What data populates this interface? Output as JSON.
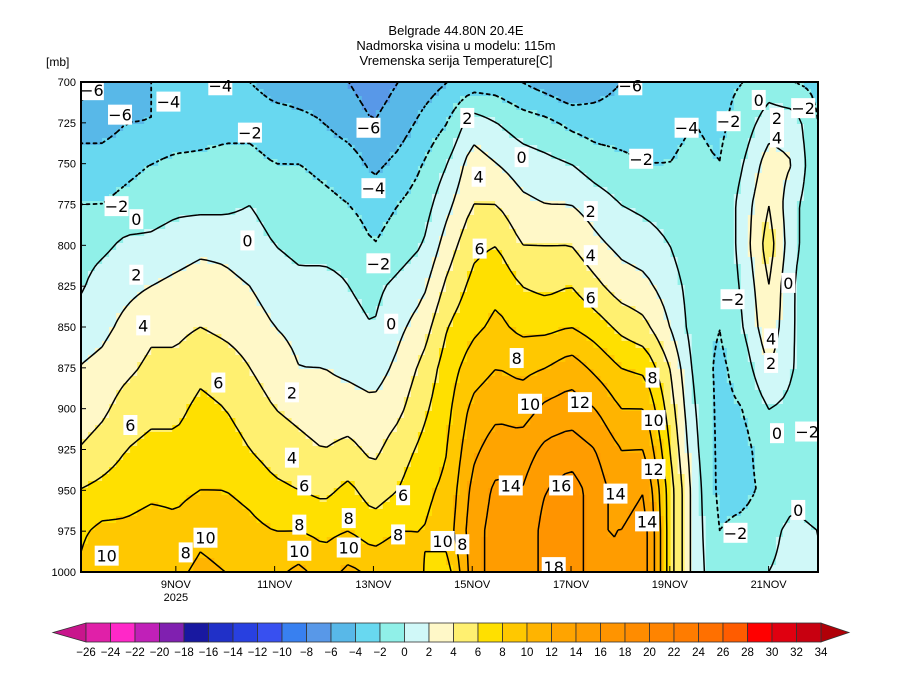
{
  "chart_data": {
    "type": "heatmap",
    "subtype": "filled-contour time-pressure cross-section",
    "title": [
      "Belgrade  44.80N 20.4E",
      "Nadmorska visina u modelu: 115m",
      "Vremenska serija Temperature[C]"
    ],
    "ylabel": "[mb]",
    "xlabel": "",
    "xlim": [
      7.08,
      22.0
    ],
    "ylim": [
      700,
      1000
    ],
    "y_ticks": [
      {
        "value": 700,
        "label": "700"
      },
      {
        "value": 725,
        "label": "725"
      },
      {
        "value": 750,
        "label": "750"
      },
      {
        "value": 775,
        "label": "775"
      },
      {
        "value": 800,
        "label": "800"
      },
      {
        "value": 825,
        "label": "825"
      },
      {
        "value": 850,
        "label": "850"
      },
      {
        "value": 875,
        "label": "875"
      },
      {
        "value": 900,
        "label": "900"
      },
      {
        "value": 925,
        "label": "925"
      },
      {
        "value": 950,
        "label": "950"
      },
      {
        "value": 975,
        "label": "975"
      },
      {
        "value": 1000,
        "label": "1000"
      }
    ],
    "x_ticks": [
      {
        "value": 9,
        "label": "9NOV",
        "sublabel": "2025"
      },
      {
        "value": 11,
        "label": "11NOV"
      },
      {
        "value": 13,
        "label": "13NOV"
      },
      {
        "value": 15,
        "label": "15NOV"
      },
      {
        "value": 17,
        "label": "17NOV"
      },
      {
        "value": 19,
        "label": "19NOV"
      },
      {
        "value": 21,
        "label": "21NOV"
      }
    ],
    "grid": {
      "times_day_of_nov": [
        7.0,
        7.5,
        8.0,
        8.5,
        9.0,
        9.5,
        10.0,
        10.5,
        11.0,
        11.5,
        12.0,
        12.5,
        13.0,
        13.5,
        14.0,
        14.5,
        15.0,
        15.5,
        16.0,
        16.5,
        17.0,
        17.5,
        18.0,
        18.5,
        19.0,
        19.5,
        20.0,
        20.5,
        21.0,
        21.5,
        22.0
      ],
      "levels_mb": [
        700,
        725,
        750,
        775,
        800,
        825,
        850,
        875,
        900,
        925,
        950,
        975,
        1000
      ],
      "values_by_time": [
        [
          -7,
          -5,
          -3,
          -2,
          -1,
          -0.5,
          1,
          2,
          2.5,
          4,
          6,
          7.5,
          8
        ],
        [
          -6,
          -5,
          -3,
          -2,
          -0.5,
          1,
          1.5,
          2.5,
          3.5,
          5,
          6.5,
          8.5,
          10
        ],
        [
          -5,
          -4,
          -2.5,
          -1.5,
          0.5,
          1.5,
          2.5,
          3.5,
          5,
          6,
          7,
          8.5,
          10
        ],
        [
          -4,
          -4,
          -2,
          -1,
          0.5,
          2,
          3.5,
          4.5,
          5.5,
          6.5,
          7.5,
          9,
          10
        ],
        [
          -4,
          -3.5,
          -1.5,
          -0.5,
          1,
          2.5,
          3.5,
          4.5,
          5.5,
          6.5,
          7.5,
          8.5,
          9.5
        ],
        [
          -4,
          -3,
          -1.5,
          -0.5,
          1.5,
          3,
          4,
          5.5,
          6.5,
          7,
          8,
          9.5,
          10.5
        ],
        [
          -4,
          -2.5,
          -1.5,
          -0.5,
          1.5,
          2.5,
          3.5,
          5,
          6,
          7,
          8,
          9,
          10
        ],
        [
          -4,
          -2.5,
          -1.5,
          0,
          1,
          2,
          3,
          4,
          5,
          6,
          7.5,
          8.5,
          9.5
        ],
        [
          -5,
          -3,
          -2,
          -1,
          0,
          1,
          2,
          3,
          4,
          5,
          6.5,
          8,
          9.5
        ],
        [
          -5,
          -3.5,
          -2,
          -1,
          -0.5,
          0.5,
          1.5,
          2,
          3.5,
          4.5,
          6,
          8,
          10.5
        ],
        [
          -5,
          -4,
          -2.5,
          -1.5,
          -0.5,
          0.5,
          1,
          2,
          3,
          4,
          5.5,
          7.5,
          9
        ],
        [
          -6,
          -5,
          -3,
          -2,
          -0.5,
          0,
          0.5,
          1.5,
          3,
          4.5,
          6.5,
          8,
          10.5
        ],
        [
          -7,
          -6,
          -4.5,
          -3,
          -2,
          -0.5,
          0,
          1,
          2.5,
          3.5,
          5,
          7,
          9.5
        ],
        [
          -6,
          -5,
          -3.5,
          -2,
          -1,
          0.5,
          1.5,
          2.5,
          3.5,
          5,
          6,
          8,
          10
        ],
        [
          -5,
          -3.5,
          -2,
          -1,
          0,
          1.5,
          3,
          4.5,
          5.5,
          6.5,
          7.5,
          8,
          8
        ],
        [
          -4,
          -2,
          0,
          1.5,
          3,
          4.5,
          6,
          7,
          7.5,
          8,
          8.5,
          9,
          7
        ],
        [
          -3,
          1,
          3,
          4,
          5.5,
          6.5,
          7.5,
          9,
          10.5,
          11.5,
          12.5,
          13,
          13
        ],
        [
          -3,
          0,
          2,
          4,
          6,
          7.5,
          8.5,
          10,
          11.5,
          13,
          14.5,
          15,
          15
        ],
        [
          -4,
          -1,
          1,
          2.5,
          4,
          6,
          7.5,
          9.5,
          11,
          13,
          14,
          14,
          14
        ],
        [
          -5,
          -1.5,
          0.5,
          2,
          4,
          5.5,
          7.5,
          10,
          12.5,
          14.5,
          16,
          17,
          17
        ],
        [
          -6,
          -2.5,
          0,
          2,
          4,
          6,
          8,
          11,
          13,
          15,
          17,
          18,
          18
        ],
        [
          -5,
          -3,
          -1,
          1,
          2.5,
          4.5,
          7,
          9.5,
          12,
          14,
          15,
          14,
          14
        ],
        [
          -4,
          -3,
          -1.5,
          0,
          1.5,
          3,
          5.5,
          8,
          10,
          12,
          13,
          14,
          14
        ],
        [
          -4,
          -3,
          -2,
          -0.5,
          1,
          2.5,
          4.5,
          7.5,
          10,
          12,
          14,
          15,
          15
        ],
        [
          -3,
          -2.5,
          -2,
          -1,
          0,
          1,
          2,
          4,
          5,
          6,
          7,
          7,
          7
        ],
        [
          -2.5,
          -2,
          -1.5,
          -1.5,
          -1.5,
          -1,
          -1,
          -0.5,
          0,
          0.5,
          1,
          1,
          1
        ],
        [
          -2.5,
          -2.5,
          -2,
          -2,
          -2,
          -2,
          -2,
          -2.5,
          -2.5,
          -2.5,
          -2.5,
          -2,
          -1.5
        ],
        [
          -2,
          -1,
          0,
          1,
          1,
          0.5,
          0,
          -1,
          -2,
          -2.5,
          -2.5,
          -1.5,
          -0.5
        ],
        [
          -1,
          1,
          3,
          4,
          5,
          4,
          3.5,
          2,
          0,
          -1,
          -1.5,
          -0.5,
          0
        ],
        [
          -2,
          1,
          2,
          0.5,
          0.5,
          0,
          0,
          0,
          -0.5,
          -1,
          -0.5,
          0.5,
          0.5
        ],
        [
          -2.5,
          -2,
          -2,
          -1.5,
          -1.5,
          -1.5,
          -1.5,
          -1.5,
          -1.5,
          -1.5,
          -1,
          0,
          0
        ]
      ]
    },
    "contour_interval": 2,
    "contour_levels": [
      -8,
      -6,
      -4,
      -2,
      0,
      2,
      4,
      6,
      8,
      10,
      12,
      14,
      16,
      18
    ],
    "negative_contours_style": "dotted",
    "contour_labels": [
      {
        "t": 7.3,
        "p": 705,
        "text": "-6"
      },
      {
        "t": 7.87,
        "p": 720,
        "text": "-6"
      },
      {
        "t": 8.85,
        "p": 712,
        "text": "-4"
      },
      {
        "t": 9.9,
        "p": 702,
        "text": "-4"
      },
      {
        "t": 10.5,
        "p": 731,
        "text": "-2"
      },
      {
        "t": 12.9,
        "p": 728,
        "text": "-6"
      },
      {
        "t": 13.0,
        "p": 765,
        "text": "-4"
      },
      {
        "t": 7.8,
        "p": 776,
        "text": "-2"
      },
      {
        "t": 8.2,
        "p": 784,
        "text": "0"
      },
      {
        "t": 10.45,
        "p": 797,
        "text": "0"
      },
      {
        "t": 13.1,
        "p": 811,
        "text": "-2"
      },
      {
        "t": 13.36,
        "p": 848,
        "text": "0"
      },
      {
        "t": 8.2,
        "p": 818,
        "text": "2"
      },
      {
        "t": 8.34,
        "p": 849,
        "text": "4"
      },
      {
        "t": 9.86,
        "p": 884,
        "text": "6"
      },
      {
        "t": 11.35,
        "p": 890,
        "text": "2"
      },
      {
        "t": 8.08,
        "p": 910,
        "text": "6"
      },
      {
        "t": 11.35,
        "p": 930,
        "text": "4"
      },
      {
        "t": 11.6,
        "p": 947,
        "text": "6"
      },
      {
        "t": 11.5,
        "p": 971,
        "text": "8"
      },
      {
        "t": 13.6,
        "p": 953,
        "text": "6"
      },
      {
        "t": 12.5,
        "p": 967,
        "text": "8"
      },
      {
        "t": 13.5,
        "p": 977,
        "text": "8"
      },
      {
        "t": 9.6,
        "p": 979,
        "text": "10"
      },
      {
        "t": 7.6,
        "p": 990,
        "text": "10"
      },
      {
        "t": 9.2,
        "p": 988,
        "text": "8"
      },
      {
        "t": 11.5,
        "p": 987,
        "text": "10"
      },
      {
        "t": 12.5,
        "p": 985,
        "text": "10"
      },
      {
        "t": 14.4,
        "p": 981,
        "text": "10"
      },
      {
        "t": 14.8,
        "p": 983,
        "text": "8"
      },
      {
        "t": 14.9,
        "p": 722,
        "text": "2"
      },
      {
        "t": 16.0,
        "p": 746,
        "text": "0"
      },
      {
        "t": 15.13,
        "p": 758,
        "text": "4"
      },
      {
        "t": 17.4,
        "p": 779,
        "text": "2"
      },
      {
        "t": 15.15,
        "p": 802,
        "text": "6"
      },
      {
        "t": 17.4,
        "p": 806,
        "text": "4"
      },
      {
        "t": 17.4,
        "p": 832,
        "text": "6"
      },
      {
        "t": 15.9,
        "p": 869,
        "text": "8"
      },
      {
        "t": 18.65,
        "p": 881,
        "text": "8"
      },
      {
        "t": 16.17,
        "p": 897,
        "text": "10"
      },
      {
        "t": 17.18,
        "p": 896,
        "text": "12"
      },
      {
        "t": 18.67,
        "p": 907,
        "text": "10"
      },
      {
        "t": 18.67,
        "p": 937,
        "text": "12"
      },
      {
        "t": 15.78,
        "p": 947,
        "text": "14"
      },
      {
        "t": 16.8,
        "p": 947,
        "text": "16"
      },
      {
        "t": 17.9,
        "p": 952,
        "text": "14"
      },
      {
        "t": 18.54,
        "p": 969,
        "text": "14"
      },
      {
        "t": 16.65,
        "p": 997,
        "text": "18"
      },
      {
        "t": 18.2,
        "p": 702,
        "text": "-6"
      },
      {
        "t": 19.34,
        "p": 728,
        "text": "-4"
      },
      {
        "t": 18.42,
        "p": 747,
        "text": "-2"
      },
      {
        "t": 20.19,
        "p": 724,
        "text": "-2"
      },
      {
        "t": 20.8,
        "p": 711,
        "text": "0"
      },
      {
        "t": 21.17,
        "p": 722,
        "text": "2"
      },
      {
        "t": 21.7,
        "p": 716,
        "text": "-2"
      },
      {
        "t": 21.17,
        "p": 734,
        "text": "4"
      },
      {
        "t": 20.27,
        "p": 833,
        "text": "-2"
      },
      {
        "t": 21.4,
        "p": 823,
        "text": "0"
      },
      {
        "t": 21.05,
        "p": 857,
        "text": "4"
      },
      {
        "t": 21.05,
        "p": 872,
        "text": "2"
      },
      {
        "t": 21.17,
        "p": 915,
        "text": "0"
      },
      {
        "t": 21.78,
        "p": 914,
        "text": "-2"
      },
      {
        "t": 20.33,
        "p": 976,
        "text": "-2"
      },
      {
        "t": 21.6,
        "p": 962,
        "text": "0"
      }
    ],
    "colorbar": {
      "orientation": "horizontal",
      "placement": "bottom",
      "levels": [
        -26,
        -24,
        -22,
        -20,
        -18,
        -16,
        -14,
        -12,
        -10,
        -8,
        -6,
        -4,
        -2,
        0,
        2,
        4,
        6,
        8,
        10,
        12,
        14,
        16,
        18,
        20,
        22,
        24,
        26,
        28,
        30,
        32,
        34
      ],
      "labels": [
        "-26",
        "-24",
        "-22",
        "-20",
        "-18",
        "-16",
        "-14",
        "-12",
        "-10",
        "-8",
        "-6",
        "-4",
        "-2",
        "0",
        "2",
        "4",
        "6",
        "8",
        "10",
        "12",
        "14",
        "16",
        "18",
        "20",
        "22",
        "24",
        "26",
        "28",
        "30",
        "32",
        "34"
      ],
      "under_color": "#c8158c",
      "over_color": "#b00008",
      "colors": [
        "#e020a8",
        "#ff28c8",
        "#c020b8",
        "#8020b0",
        "#1818a0",
        "#2030c8",
        "#2840e0",
        "#3850f0",
        "#3880f0",
        "#5898e8",
        "#58b8e8",
        "#68d8f0",
        "#90f0e8",
        "#d0f8f8",
        "#fff8c8",
        "#fff070",
        "#ffe000",
        "#ffc800",
        "#ffb400",
        "#ffa400",
        "#ff9c00",
        "#ff9400",
        "#ff8c00",
        "#ff8400",
        "#ff7c00",
        "#ff7000",
        "#ff5c00",
        "#ff0000",
        "#e00010",
        "#c80010"
      ]
    }
  }
}
